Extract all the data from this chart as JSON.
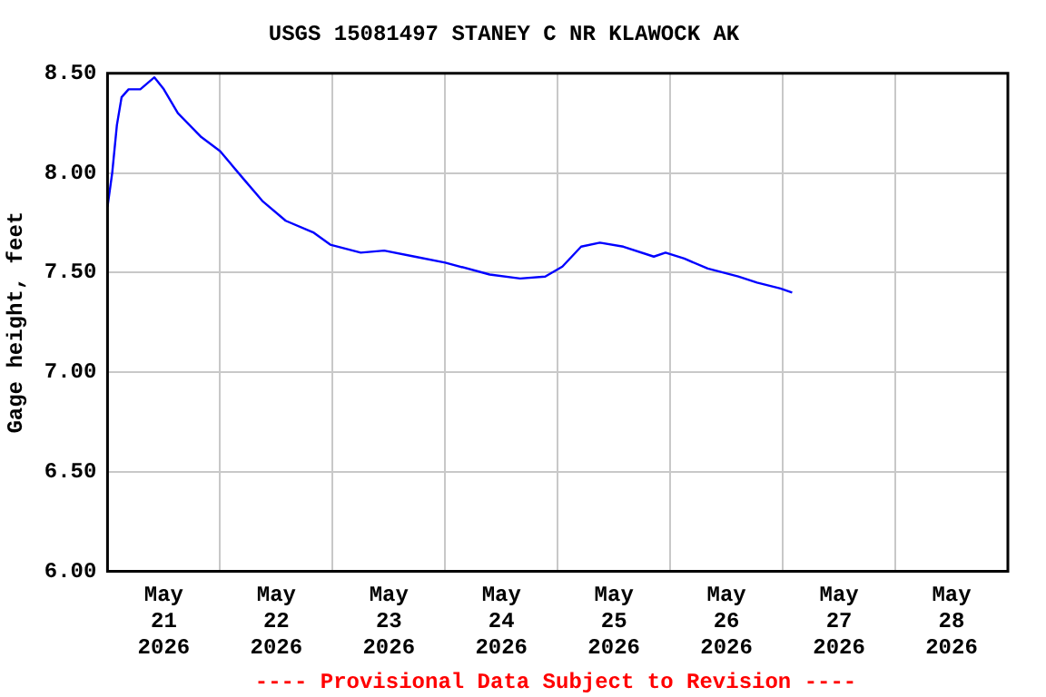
{
  "chart_data": {
    "type": "line",
    "title": "USGS 15081497 STANEY C NR KLAWOCK AK",
    "ylabel": "Gage height, feet",
    "annotations": [
      "---- Provisional Data Subject to Revision ----"
    ],
    "x": [
      "2026-05-21T00:00",
      "2026-05-21T01:00",
      "2026-05-21T02:00",
      "2026-05-21T03:00",
      "2026-05-21T04:30",
      "2026-05-21T07:00",
      "2026-05-21T10:00",
      "2026-05-21T12:00",
      "2026-05-21T15:00",
      "2026-05-21T20:00",
      "2026-05-22T00:00",
      "2026-05-22T05:00",
      "2026-05-22T09:00",
      "2026-05-22T14:00",
      "2026-05-22T20:00",
      "2026-05-22T23:30",
      "2026-05-23T06:00",
      "2026-05-23T11:00",
      "2026-05-23T17:30",
      "2026-05-24T00:00",
      "2026-05-24T09:30",
      "2026-05-24T16:00",
      "2026-05-24T21:20",
      "2026-05-25T01:00",
      "2026-05-25T05:00",
      "2026-05-25T09:00",
      "2026-05-25T14:00",
      "2026-05-25T20:30",
      "2026-05-25T23:00",
      "2026-05-26T03:00",
      "2026-05-26T08:00",
      "2026-05-26T14:30",
      "2026-05-26T18:30",
      "2026-05-26T23:30",
      "2026-05-27T02:00"
    ],
    "series": [
      {
        "color": "#0000ff",
        "values": [
          7.83,
          8.0,
          8.24,
          8.38,
          8.42,
          8.42,
          8.48,
          8.42,
          8.3,
          8.18,
          8.11,
          7.97,
          7.86,
          7.76,
          7.7,
          7.64,
          7.6,
          7.61,
          7.58,
          7.55,
          7.49,
          7.47,
          7.48,
          7.53,
          7.63,
          7.65,
          7.63,
          7.58,
          7.6,
          7.57,
          7.52,
          7.48,
          7.45,
          7.42,
          7.4
        ]
      }
    ],
    "xlim": [
      "2026-05-21T00:00",
      "2026-05-29T00:00"
    ],
    "xticks": [
      {
        "value": "2026-05-21T12:00",
        "label": "May 21 2026"
      },
      {
        "value": "2026-05-22T00:00",
        "label": null
      },
      {
        "value": "2026-05-22T12:00",
        "label": "May 22 2026"
      },
      {
        "value": "2026-05-23T00:00",
        "label": null
      },
      {
        "value": "2026-05-23T12:00",
        "label": "May 23 2026"
      },
      {
        "value": "2026-05-24T00:00",
        "label": null
      },
      {
        "value": "2026-05-24T12:00",
        "label": "May 24 2026"
      },
      {
        "value": "2026-05-25T00:00",
        "label": null
      },
      {
        "value": "2026-05-25T12:00",
        "label": "May 25 2026"
      },
      {
        "value": "2026-05-26T00:00",
        "label": null
      },
      {
        "value": "2026-05-26T12:00",
        "label": "May 26 2026"
      },
      {
        "value": "2026-05-27T00:00",
        "label": null
      },
      {
        "value": "2026-05-27T12:00",
        "label": "May 27 2026"
      },
      {
        "value": "2026-05-28T00:00",
        "label": null
      },
      {
        "value": "2026-05-28T12:00",
        "label": "May 28 2026"
      }
    ],
    "ylim": [
      6.0,
      8.5
    ],
    "yticks": [
      {
        "value": 6.0,
        "label": "6.00"
      },
      {
        "value": 6.5,
        "label": "6.50"
      },
      {
        "value": 7.0,
        "label": "7.00"
      },
      {
        "value": 7.5,
        "label": "7.50"
      },
      {
        "value": 8.0,
        "label": "8.00"
      },
      {
        "value": 8.5,
        "label": "8.50"
      }
    ],
    "grid": true,
    "legend": false,
    "marker": "none",
    "line_style": "solid"
  }
}
